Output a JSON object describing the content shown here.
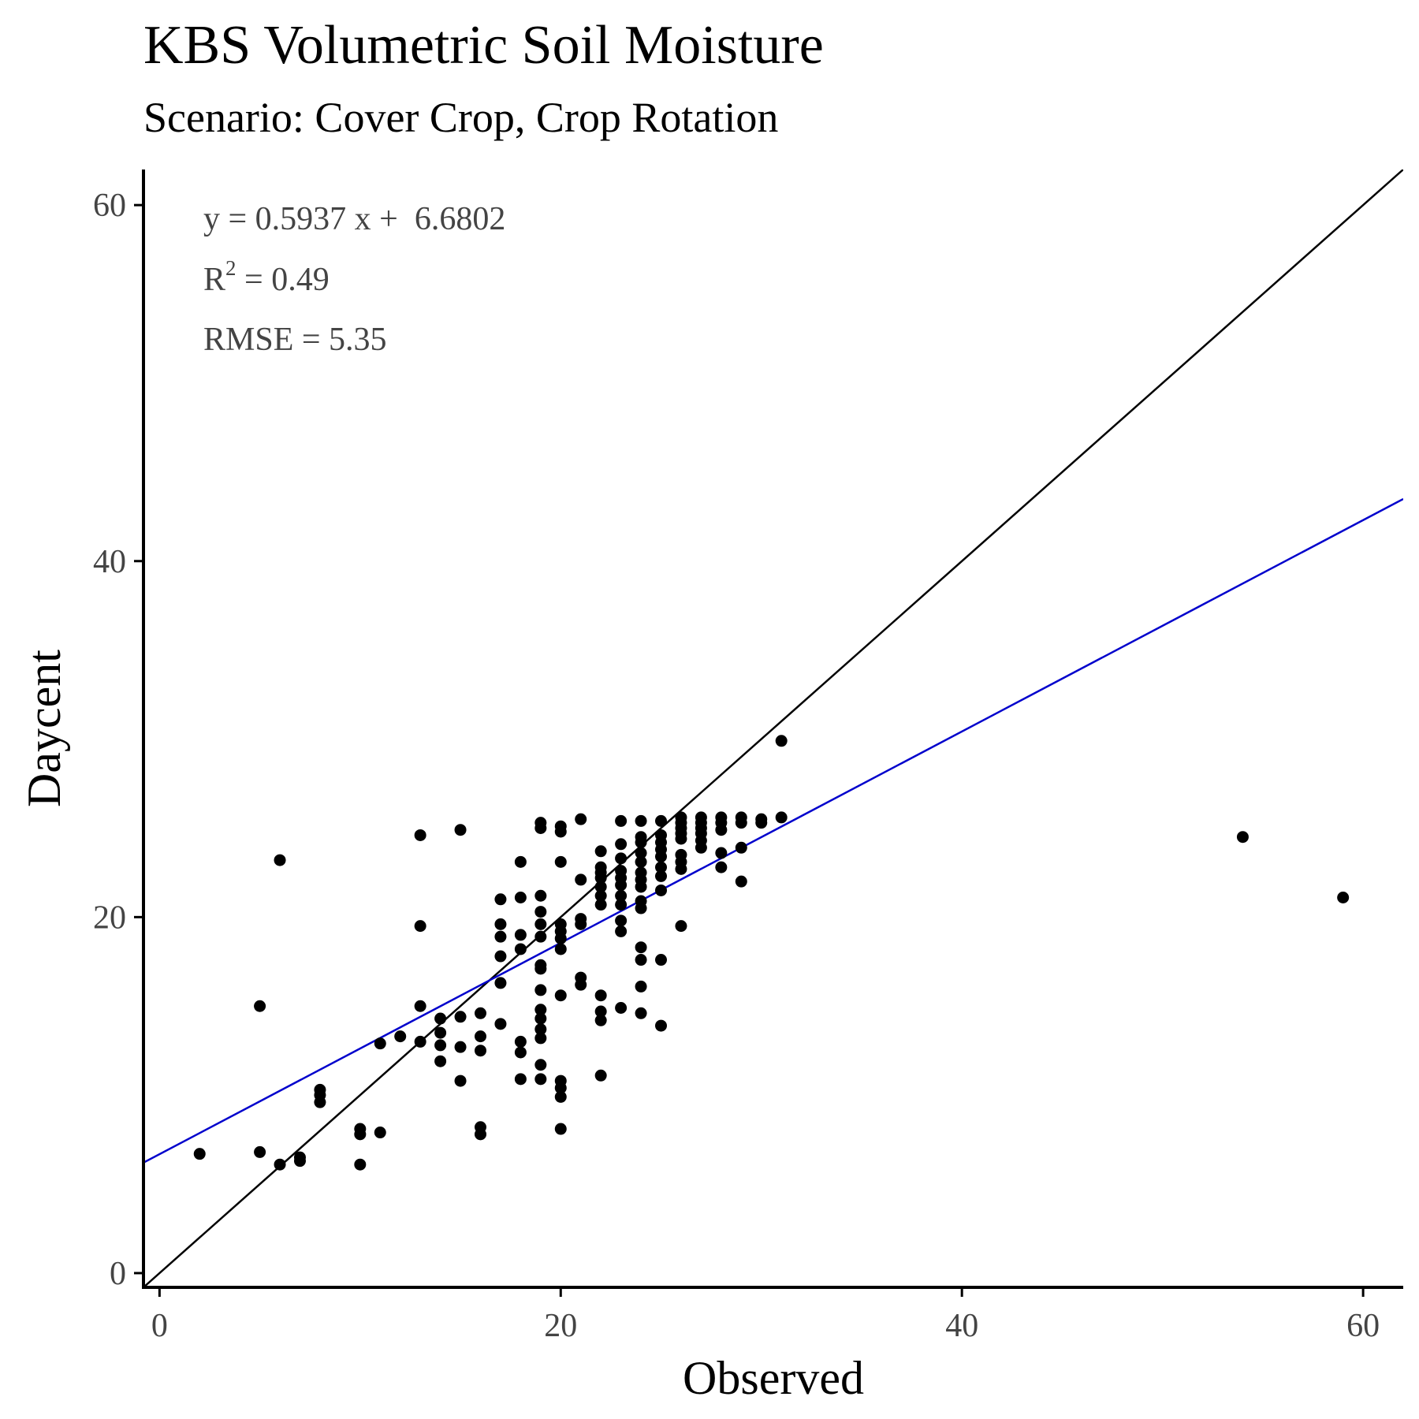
{
  "chart_data": {
    "type": "scatter",
    "title": "KBS Volumetric Soil Moisture",
    "subtitle": "Scenario: Cover Crop, Crop Rotation",
    "xlabel": "Observed",
    "ylabel": "Daycent",
    "xlim": [
      -0.8,
      62
    ],
    "ylim": [
      -0.8,
      62
    ],
    "xticks": [
      0,
      20,
      40,
      60
    ],
    "yticks": [
      0,
      20,
      40,
      60
    ],
    "grid": false,
    "annotations": {
      "equation": "y = 0.5937 x +  6.6802",
      "r2_label": "R",
      "r2_sup": "2",
      "r2_value": " = 0.49",
      "rmse": "RMSE = 5.35"
    },
    "lines": [
      {
        "kind": "one-to-one",
        "slope": 1,
        "intercept": 0,
        "color": "#000000"
      },
      {
        "kind": "regression",
        "slope": 0.5937,
        "intercept": 6.6802,
        "color": "#0000cc"
      }
    ],
    "points": [
      [
        2,
        6.7
      ],
      [
        5,
        15
      ],
      [
        5,
        6.8
      ],
      [
        6,
        23.2
      ],
      [
        6,
        6.1
      ],
      [
        7,
        6.3
      ],
      [
        7,
        6.5
      ],
      [
        8,
        10
      ],
      [
        8,
        9.6
      ],
      [
        8,
        10.3
      ],
      [
        10,
        7.8
      ],
      [
        10,
        8.1
      ],
      [
        10,
        6.1
      ],
      [
        11,
        12.9
      ],
      [
        11,
        7.9
      ],
      [
        12,
        13.3
      ],
      [
        13,
        24.6
      ],
      [
        13,
        19.5
      ],
      [
        13,
        15
      ],
      [
        13,
        13
      ],
      [
        14,
        14.3
      ],
      [
        14,
        13.5
      ],
      [
        14,
        12.8
      ],
      [
        14,
        11.9
      ],
      [
        15,
        24.9
      ],
      [
        15,
        14.4
      ],
      [
        15,
        12.7
      ],
      [
        15,
        10.8
      ],
      [
        16,
        14.6
      ],
      [
        16,
        13.3
      ],
      [
        16,
        12.5
      ],
      [
        16,
        8.2
      ],
      [
        16,
        7.8
      ],
      [
        17,
        21
      ],
      [
        17,
        19.6
      ],
      [
        17,
        18.9
      ],
      [
        17,
        17.8
      ],
      [
        17,
        16.3
      ],
      [
        17,
        14
      ],
      [
        18,
        23.1
      ],
      [
        18,
        21.1
      ],
      [
        18,
        19
      ],
      [
        18,
        18.2
      ],
      [
        18,
        13
      ],
      [
        18,
        12.4
      ],
      [
        18,
        10.9
      ],
      [
        19,
        25.3
      ],
      [
        19,
        25
      ],
      [
        19,
        21.2
      ],
      [
        19,
        20.3
      ],
      [
        19,
        19.6
      ],
      [
        19,
        18.9
      ],
      [
        19,
        17.3
      ],
      [
        19,
        17.1
      ],
      [
        19,
        15.9
      ],
      [
        19,
        14.8
      ],
      [
        19,
        14.3
      ],
      [
        19,
        13.7
      ],
      [
        19,
        13.2
      ],
      [
        19,
        11.7
      ],
      [
        19,
        10.9
      ],
      [
        20,
        25.1
      ],
      [
        20,
        24.8
      ],
      [
        20,
        23.1
      ],
      [
        20,
        19.6
      ],
      [
        20,
        19.2
      ],
      [
        20,
        18.8
      ],
      [
        20,
        18.2
      ],
      [
        20,
        15.6
      ],
      [
        20,
        10.8
      ],
      [
        20,
        10.4
      ],
      [
        20,
        9.9
      ],
      [
        20,
        8.1
      ],
      [
        21,
        25.5
      ],
      [
        21,
        22.1
      ],
      [
        21,
        19.9
      ],
      [
        21,
        19.6
      ],
      [
        21,
        16.6
      ],
      [
        21,
        16.2
      ],
      [
        22,
        23.7
      ],
      [
        22,
        22.8
      ],
      [
        22,
        22.5
      ],
      [
        22,
        22.2
      ],
      [
        22,
        21.7
      ],
      [
        22,
        21.2
      ],
      [
        22,
        20.7
      ],
      [
        22,
        15.6
      ],
      [
        22,
        14.7
      ],
      [
        22,
        14.2
      ],
      [
        22,
        11.1
      ],
      [
        23,
        25.4
      ],
      [
        23,
        24.1
      ],
      [
        23,
        23.3
      ],
      [
        23,
        22.6
      ],
      [
        23,
        22.2
      ],
      [
        23,
        21.8
      ],
      [
        23,
        21.2
      ],
      [
        23,
        20.7
      ],
      [
        23,
        19.8
      ],
      [
        23,
        19.2
      ],
      [
        23,
        14.9
      ],
      [
        24,
        25.4
      ],
      [
        24,
        24.5
      ],
      [
        24,
        24.2
      ],
      [
        24,
        23.6
      ],
      [
        24,
        23.1
      ],
      [
        24,
        22.5
      ],
      [
        24,
        22.1
      ],
      [
        24,
        21.7
      ],
      [
        24,
        20.9
      ],
      [
        24,
        20.5
      ],
      [
        24,
        18.3
      ],
      [
        24,
        17.6
      ],
      [
        24,
        16.1
      ],
      [
        24,
        14.6
      ],
      [
        25,
        25.4
      ],
      [
        25,
        24.6
      ],
      [
        25,
        24.2
      ],
      [
        25,
        23.8
      ],
      [
        25,
        23.4
      ],
      [
        25,
        22.8
      ],
      [
        25,
        22.3
      ],
      [
        25,
        21.5
      ],
      [
        25,
        17.6
      ],
      [
        25,
        13.9
      ],
      [
        26,
        25.6
      ],
      [
        26,
        25.3
      ],
      [
        26,
        25
      ],
      [
        26,
        24.7
      ],
      [
        26,
        24.4
      ],
      [
        26,
        23.5
      ],
      [
        26,
        23.1
      ],
      [
        26,
        22.7
      ],
      [
        26,
        19.5
      ],
      [
        27,
        25.6
      ],
      [
        27,
        25.3
      ],
      [
        27,
        25
      ],
      [
        27,
        24.7
      ],
      [
        27,
        24.3
      ],
      [
        27,
        23.9
      ],
      [
        28,
        25.6
      ],
      [
        28,
        25.3
      ],
      [
        28,
        24.9
      ],
      [
        28,
        23.6
      ],
      [
        28,
        22.8
      ],
      [
        29,
        25.6
      ],
      [
        29,
        25.3
      ],
      [
        29,
        23.9
      ],
      [
        29,
        22
      ],
      [
        30,
        25.5
      ],
      [
        30,
        25.3
      ],
      [
        31,
        29.9
      ],
      [
        31,
        25.6
      ],
      [
        54,
        24.5
      ],
      [
        59,
        21.1
      ]
    ]
  }
}
